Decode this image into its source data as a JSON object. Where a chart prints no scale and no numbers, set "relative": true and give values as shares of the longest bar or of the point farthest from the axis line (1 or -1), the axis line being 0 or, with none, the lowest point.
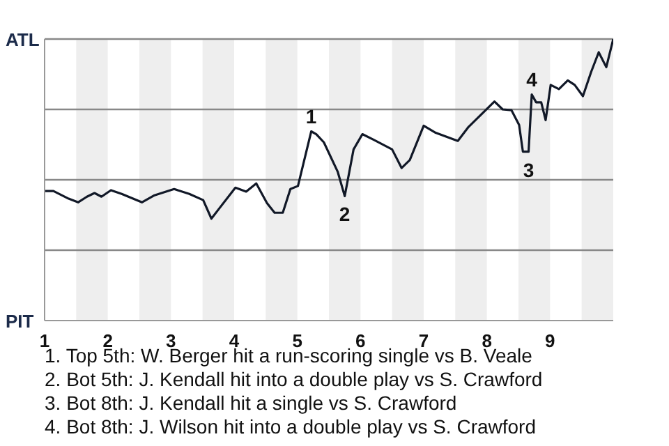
{
  "chart_data": {
    "type": "line",
    "relative": true,
    "x": [
      1,
      1.14,
      1.38,
      1.53,
      1.67,
      1.79,
      1.9,
      2.05,
      2.22,
      2.54,
      2.74,
      3.05,
      3.29,
      3.51,
      3.64,
      3.76,
      4.02,
      4.19,
      4.35,
      4.52,
      4.64,
      4.77,
      4.89,
      5.01,
      5.22,
      5.3,
      5.42,
      5.64,
      5.75,
      5.89,
      6.03,
      6.21,
      6.5,
      6.65,
      6.78,
      7,
      7.19,
      7.54,
      7.71,
      8.12,
      8.25,
      8.39,
      8.51,
      8.57,
      8.66,
      8.71,
      8.78,
      8.86,
      8.93,
      9.01,
      9.14,
      9.28,
      9.39,
      9.52,
      9.65,
      9.77,
      9.89,
      10
    ],
    "series": [
      {
        "color": "#111827",
        "values": [
          0.46,
          0.46,
          0.433,
          0.42,
          0.44,
          0.453,
          0.44,
          0.463,
          0.45,
          0.42,
          0.445,
          0.467,
          0.45,
          0.428,
          0.362,
          0.397,
          0.472,
          0.458,
          0.487,
          0.417,
          0.383,
          0.383,
          0.467,
          0.478,
          0.672,
          0.662,
          0.633,
          0.528,
          0.442,
          0.608,
          0.662,
          0.642,
          0.608,
          0.542,
          0.57,
          0.692,
          0.667,
          0.638,
          0.688,
          0.778,
          0.75,
          0.747,
          0.695,
          0.6,
          0.6,
          0.803,
          0.775,
          0.775,
          0.712,
          0.837,
          0.822,
          0.853,
          0.837,
          0.797,
          0.883,
          0.953,
          0.9,
          1
        ]
      }
    ],
    "xlim": [
      1,
      10
    ],
    "xticks": [
      1,
      2,
      3,
      4,
      5,
      6,
      7,
      8,
      9
    ],
    "marker": "none",
    "line_style": "solid",
    "ref_lines": [
      {
        "axis": "y",
        "value": 0.25,
        "color": "#888888"
      },
      {
        "axis": "y",
        "value": 0.5,
        "color": "#888888"
      },
      {
        "axis": "y",
        "value": 0.75,
        "color": "#888888"
      },
      {
        "axis": "y",
        "value": 1,
        "color": "#888888"
      }
    ],
    "bands": [
      {
        "axis": "x",
        "from": 1.5,
        "to": 2,
        "color": "#eeeeee"
      },
      {
        "axis": "x",
        "from": 2.5,
        "to": 3,
        "color": "#eeeeee"
      },
      {
        "axis": "x",
        "from": 3.5,
        "to": 4,
        "color": "#eeeeee"
      },
      {
        "axis": "x",
        "from": 4.5,
        "to": 5,
        "color": "#eeeeee"
      },
      {
        "axis": "x",
        "from": 5.5,
        "to": 6,
        "color": "#eeeeee"
      },
      {
        "axis": "x",
        "from": 6.5,
        "to": 7,
        "color": "#eeeeee"
      },
      {
        "axis": "x",
        "from": 7.5,
        "to": 8,
        "color": "#eeeeee"
      },
      {
        "axis": "x",
        "from": 8.5,
        "to": 9,
        "color": "#eeeeee"
      },
      {
        "axis": "x",
        "from": 9.5,
        "to": 10,
        "color": "#eeeeee"
      }
    ],
    "annotations": [
      "ATL",
      "PIT",
      {
        "text": "1",
        "x": 5.22,
        "y": 0.672
      },
      {
        "text": "2",
        "x": 5.75,
        "y": 0.442
      },
      {
        "text": "3",
        "x": 8.66,
        "y": 0.6
      },
      {
        "text": "4",
        "x": 8.71,
        "y": 0.803
      },
      "1. Top 5th: W. Berger hit a run-scoring single vs B. Veale",
      "2. Bot 5th: J. Kendall hit into a double play vs S. Crawford",
      "3. Bot 8th: J. Kendall hit a single vs S. Crawford",
      "4. Bot 8th: J. Wilson hit into a double play vs S. Crawford"
    ]
  }
}
